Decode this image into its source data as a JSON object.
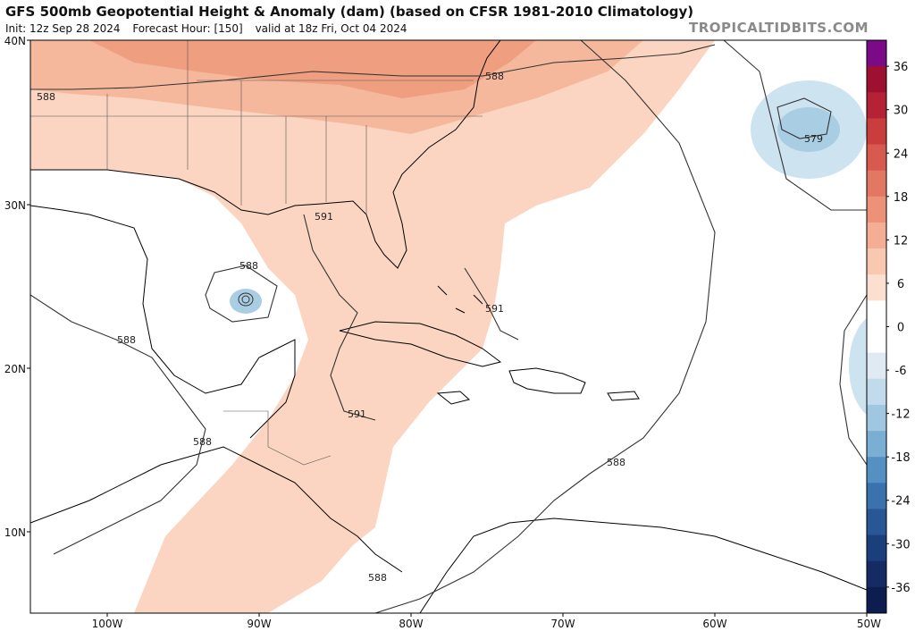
{
  "header": {
    "title": "GFS 500mb Geopotential Height & Anomaly (dam) (based on CFSR 1981-2010 Climatology)",
    "init": "Init: 12z Sep 28 2024",
    "forecast_hour": "Forecast Hour: [150]",
    "valid": "valid at 18z Fri, Oct 04 2024",
    "brand": "TROPICALTIDBITS.COM"
  },
  "map": {
    "lat_labels": [
      "40N",
      "30N",
      "20N",
      "10N"
    ],
    "lon_labels": [
      "100W",
      "90W",
      "80W",
      "70W",
      "60W",
      "50W"
    ],
    "contour_labels": [
      "588",
      "588",
      "588",
      "588",
      "588",
      "588",
      "588",
      "591",
      "591",
      "591",
      "579"
    ],
    "colors": {
      "anom_pos_6": "#fbd5c1",
      "anom_pos_12": "#f6b89c",
      "anom_pos_18": "#f09e80",
      "anom_neg_6": "#cde3f0",
      "anom_neg_12": "#a9cde3",
      "land_border": "#000000",
      "contour": "#333333"
    }
  },
  "colorbar": {
    "labels": [
      "36",
      "30",
      "24",
      "18",
      "12",
      "6",
      "0",
      "-6",
      "-12",
      "-18",
      "-24",
      "-30",
      "-36"
    ],
    "colors": [
      "#7b0a87",
      "#9e1030",
      "#b52235",
      "#c93d3d",
      "#d85a4f",
      "#e37862",
      "#ec9377",
      "#f3ae93",
      "#f8c8b1",
      "#fbdfd0",
      "#ffffff",
      "#ffffff",
      "#dfeaf3",
      "#c2dbec",
      "#9fc7e2",
      "#7aafd4",
      "#5590c2",
      "#3a72ad",
      "#275794",
      "#1b3f7a",
      "#142c63",
      "#0e1d4f"
    ]
  }
}
